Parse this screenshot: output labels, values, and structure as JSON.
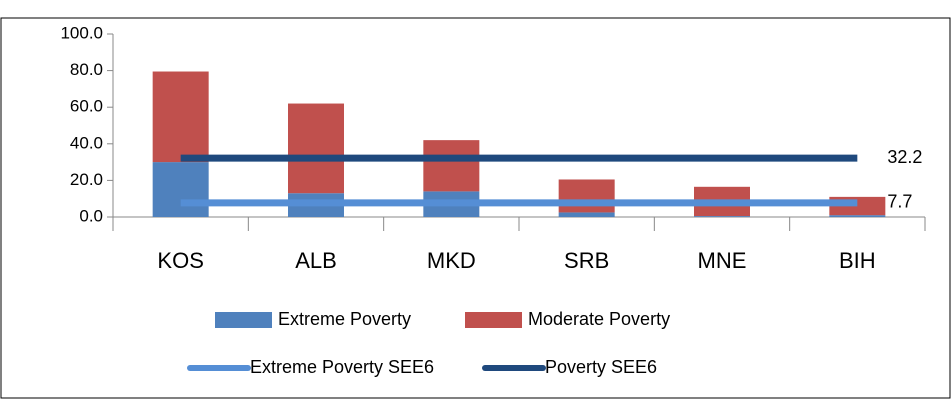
{
  "chart_data": {
    "type": "stacked-bar-line",
    "categories": [
      "KOS",
      "ALB",
      "MKD",
      "SRB",
      "MNE",
      "BIH"
    ],
    "series": [
      {
        "name": "Extreme Poverty",
        "color": "#4f81bd",
        "values": [
          30,
          13,
          14,
          2.5,
          0.5,
          1
        ]
      },
      {
        "name": "Moderate Poverty",
        "color": "#c0504d",
        "values": [
          49.5,
          49,
          28,
          18,
          16,
          10
        ]
      },
      {
        "name": "Extreme Poverty SEE6",
        "type": "line",
        "color": "#558ed5",
        "values": [
          7.7,
          7.7,
          7.7,
          7.7,
          7.7,
          7.7
        ]
      },
      {
        "name": "Poverty SEE6",
        "type": "line",
        "color": "#1f497d",
        "values": [
          32.2,
          32.2,
          32.2,
          32.2,
          32.2,
          32.2
        ]
      }
    ],
    "ylim": [
      0,
      100
    ],
    "yticks": [
      {
        "value": 0,
        "label": "0.0"
      },
      {
        "value": 20,
        "label": "20.0"
      },
      {
        "value": 40,
        "label": "40.0"
      },
      {
        "value": 60,
        "label": "60.0"
      },
      {
        "value": 80,
        "label": "80.0"
      },
      {
        "value": 100,
        "label": "100.0"
      }
    ],
    "grid": false,
    "legend": "bottom"
  }
}
